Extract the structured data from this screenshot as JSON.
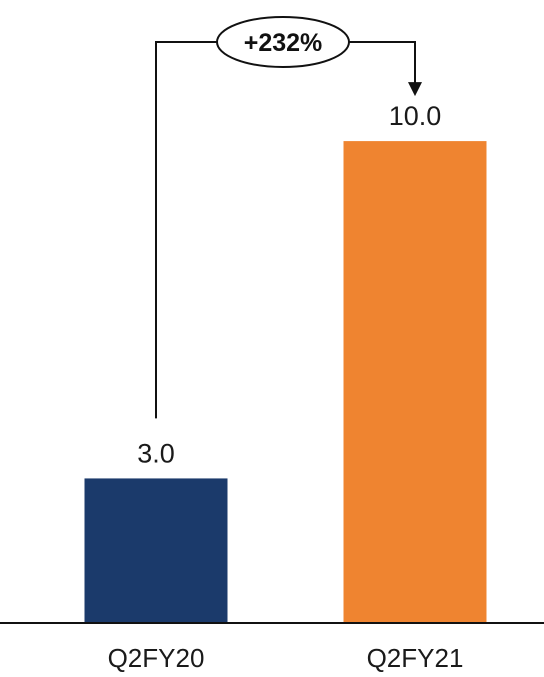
{
  "chart_data": {
    "type": "bar",
    "categories": [
      "Q2FY20",
      "Q2FY21"
    ],
    "values": [
      3.0,
      10.0
    ],
    "value_labels": [
      "3.0",
      "10.0"
    ],
    "bar_colors": [
      "#1b3a6b",
      "#ef8430"
    ],
    "title": "",
    "xlabel": "",
    "ylabel": "",
    "ylim": [
      0,
      10.5
    ],
    "grid": false,
    "legend": "none",
    "annotation": {
      "text": "+232%",
      "from_category": "Q2FY20",
      "to_category": "Q2FY21",
      "style": "bracket-arrow"
    }
  }
}
